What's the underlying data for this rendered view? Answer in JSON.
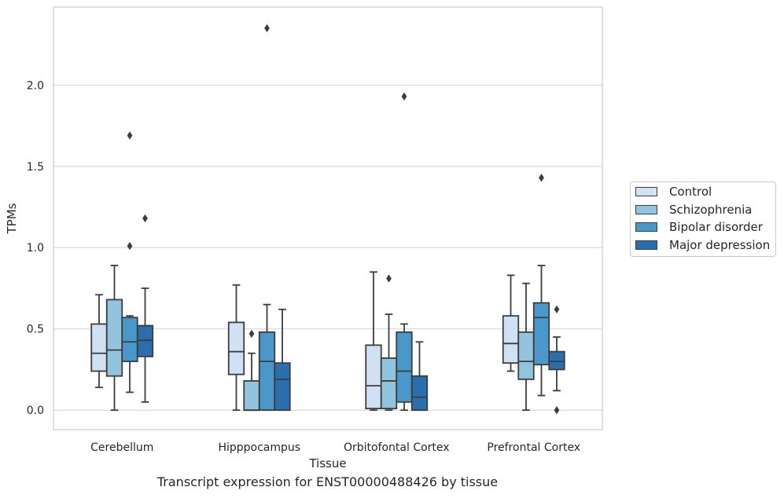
{
  "chart_data": {
    "type": "box",
    "title": "Transcript expression for ENST00000488426 by tissue",
    "xlabel": "Tissue",
    "ylabel": "TPMs",
    "ylim": [
      -0.12,
      2.48
    ],
    "yticks": [
      "0.0",
      "0.5",
      "1.0",
      "1.5",
      "2.0"
    ],
    "ytick_values": [
      0.0,
      0.5,
      1.0,
      1.5,
      2.0
    ],
    "grid": "horizontal",
    "legend_position": "right, outside",
    "categories": [
      "Cerebellum",
      "Hipppocampus",
      "Orbitofontal Cortex",
      "Prefrontal Cortex"
    ],
    "series": [
      {
        "name": "Control",
        "color": "#cfe1f2",
        "boxes": [
          {
            "whislo": 0.14,
            "q1": 0.24,
            "med": 0.35,
            "q3": 0.53,
            "whishi": 0.71,
            "fliers": []
          },
          {
            "whislo": 0.0,
            "q1": 0.22,
            "med": 0.36,
            "q3": 0.54,
            "whishi": 0.77,
            "fliers": []
          },
          {
            "whislo": 0.0,
            "q1": 0.01,
            "med": 0.15,
            "q3": 0.4,
            "whishi": 0.85,
            "fliers": []
          },
          {
            "whislo": 0.24,
            "q1": 0.29,
            "med": 0.41,
            "q3": 0.58,
            "whishi": 0.83,
            "fliers": []
          }
        ]
      },
      {
        "name": "Schizophrenia",
        "color": "#93c4de",
        "boxes": [
          {
            "whislo": 0.0,
            "q1": 0.21,
            "med": 0.37,
            "q3": 0.68,
            "whishi": 0.89,
            "fliers": []
          },
          {
            "whislo": 0.0,
            "q1": 0.0,
            "med": 0.0,
            "q3": 0.18,
            "whishi": 0.35,
            "fliers": [
              0.47
            ]
          },
          {
            "whislo": 0.0,
            "q1": 0.01,
            "med": 0.18,
            "q3": 0.32,
            "whishi": 0.59,
            "fliers": [
              0.81
            ]
          },
          {
            "whislo": 0.0,
            "q1": 0.19,
            "med": 0.3,
            "q3": 0.48,
            "whishi": 0.78,
            "fliers": []
          }
        ]
      },
      {
        "name": "Bipolar disorder",
        "color": "#4a98c9",
        "boxes": [
          {
            "whislo": 0.11,
            "q1": 0.3,
            "med": 0.42,
            "q3": 0.57,
            "whishi": 0.58,
            "fliers": [
              1.01,
              1.69
            ]
          },
          {
            "whislo": 0.0,
            "q1": 0.0,
            "med": 0.3,
            "q3": 0.48,
            "whishi": 0.65,
            "fliers": [
              2.35
            ]
          },
          {
            "whislo": 0.0,
            "q1": 0.05,
            "med": 0.24,
            "q3": 0.48,
            "whishi": 0.53,
            "fliers": [
              1.93
            ]
          },
          {
            "whislo": 0.09,
            "q1": 0.28,
            "med": 0.57,
            "q3": 0.66,
            "whishi": 0.89,
            "fliers": [
              1.43
            ]
          }
        ]
      },
      {
        "name": "Major depression",
        "color": "#2b6eae",
        "boxes": [
          {
            "whislo": 0.05,
            "q1": 0.33,
            "med": 0.43,
            "q3": 0.52,
            "whishi": 0.75,
            "fliers": [
              1.18
            ]
          },
          {
            "whislo": 0.0,
            "q1": 0.0,
            "med": 0.19,
            "q3": 0.29,
            "whishi": 0.62,
            "fliers": []
          },
          {
            "whislo": 0.0,
            "q1": 0.0,
            "med": 0.08,
            "q3": 0.21,
            "whishi": 0.42,
            "fliers": []
          },
          {
            "whislo": 0.12,
            "q1": 0.25,
            "med": 0.3,
            "q3": 0.36,
            "whishi": 0.45,
            "fliers": [
              0.0,
              0.62
            ]
          }
        ]
      }
    ]
  }
}
